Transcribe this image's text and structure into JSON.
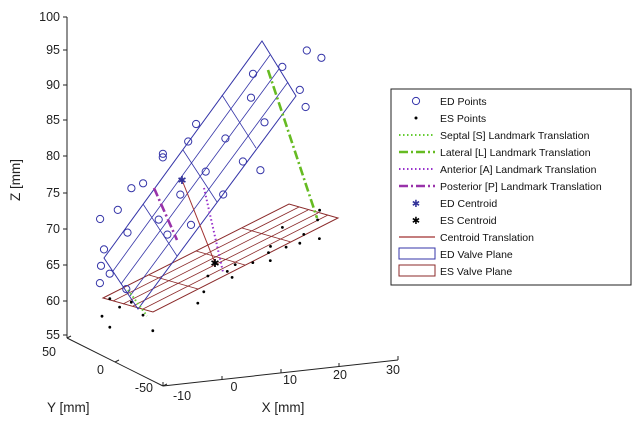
{
  "chart_data": {
    "type": "scatter",
    "projection": "3d",
    "title": "",
    "xlabel": "X [mm]",
    "ylabel": "Y [mm]",
    "zlabel": "Z [mm]",
    "xlim": [
      -10,
      30
    ],
    "ylim": [
      -50,
      50
    ],
    "zlim": [
      55,
      100
    ],
    "x_ticks": [
      "-10",
      "0",
      "10",
      "20",
      "30"
    ],
    "y_ticks": [
      "50",
      "0",
      "-50"
    ],
    "z_ticks": [
      "100",
      "95",
      "90",
      "85",
      "80",
      "75",
      "70",
      "65",
      "60",
      "55"
    ],
    "grid": false,
    "legend_position": "right",
    "legend": [
      {
        "label": "ED Points",
        "marker": "circle",
        "color": "#3333aa"
      },
      {
        "label": "ES Points",
        "marker": "dot",
        "color": "#000000"
      },
      {
        "label": "Septal [S] Landmark Translation",
        "line": "dotted",
        "color": "#66cc33"
      },
      {
        "label": "Lateral [L] Landmark Translation",
        "line": "dashdot",
        "color": "#66bb22"
      },
      {
        "label": "Anterior [A] Landmark Translation",
        "line": "dotted",
        "color": "#9933cc"
      },
      {
        "label": "Posterior [P] Landmark Translation",
        "line": "dashdot",
        "color": "#9933aa"
      },
      {
        "label": "ED Centroid",
        "marker": "star",
        "color": "#333399"
      },
      {
        "label": "ES Centroid",
        "marker": "star",
        "color": "#000000"
      },
      {
        "label": "Centroid Translation",
        "line": "solid",
        "color": "#a03030"
      },
      {
        "label": "ED Valve Plane",
        "patch": true,
        "color": "#3333aa"
      },
      {
        "label": "ES Valve Plane",
        "patch": true,
        "color": "#8b2a2a"
      }
    ],
    "ed_points": [
      [
        -6,
        40,
        72
      ],
      [
        -7,
        33,
        66
      ],
      [
        -8,
        28,
        64
      ],
      [
        -6,
        30,
        65
      ],
      [
        -4,
        25,
        63
      ],
      [
        -1,
        38,
        76
      ],
      [
        0,
        32,
        77
      ],
      [
        2,
        28,
        72
      ],
      [
        -3,
        40,
        73
      ],
      [
        3,
        25,
        70
      ],
      [
        4,
        36,
        80
      ],
      [
        6,
        30,
        75
      ],
      [
        7,
        25,
        71
      ],
      [
        8,
        34,
        82
      ],
      [
        10,
        28,
        78
      ],
      [
        10,
        38,
        84
      ],
      [
        14,
        32,
        82
      ],
      [
        16,
        26,
        79
      ],
      [
        19,
        36,
        87
      ],
      [
        20,
        28,
        84
      ],
      [
        24,
        34,
        91
      ],
      [
        26,
        28,
        88
      ],
      [
        28,
        33,
        93
      ],
      [
        30,
        30,
        92
      ],
      [
        12,
        22,
        75
      ],
      [
        18,
        20,
        78
      ],
      [
        -2,
        36,
        70
      ],
      [
        20,
        40,
        90
      ],
      [
        26,
        22,
        86
      ],
      [
        5,
        42,
        80
      ],
      [
        -6,
        36,
        68
      ]
    ],
    "es_points": [
      [
        -5,
        36,
        61
      ],
      [
        -4,
        32,
        60
      ],
      [
        -2,
        32,
        60.5
      ],
      [
        -1,
        26,
        59
      ],
      [
        -6,
        38,
        58.5
      ],
      [
        -5,
        36,
        57
      ],
      [
        1,
        28,
        56.5
      ],
      [
        8,
        24,
        60
      ],
      [
        10,
        30,
        61
      ],
      [
        12,
        38,
        62.5
      ],
      [
        14,
        25,
        63
      ],
      [
        16,
        34,
        64
      ],
      [
        18,
        28,
        64.5
      ],
      [
        20,
        22,
        65
      ],
      [
        22,
        34,
        66
      ],
      [
        25,
        40,
        68
      ],
      [
        27,
        30,
        67.5
      ],
      [
        29,
        26,
        67
      ],
      [
        30,
        34,
        69
      ],
      [
        31,
        38,
        70
      ],
      [
        26,
        28,
        66.5
      ],
      [
        24,
        30,
        66
      ],
      [
        21,
        30,
        65.5
      ],
      [
        14,
        30,
        63.5
      ]
    ],
    "ed_centroid": [
      12,
      32,
      78
    ],
    "es_centroid": [
      12,
      28,
      62
    ],
    "ed_plane_corners": [
      [
        -8,
        40,
        74
      ],
      [
        32,
        40,
        100
      ],
      [
        32,
        20,
        82
      ],
      [
        -8,
        20,
        56
      ]
    ],
    "es_plane_corners": [
      [
        -8,
        40,
        62
      ],
      [
        32,
        40,
        76
      ],
      [
        32,
        20,
        62
      ],
      [
        -8,
        20,
        48
      ]
    ],
    "septal_translation": [
      [
        -6,
        36,
        61
      ],
      [
        -5,
        36,
        57
      ]
    ],
    "lateral_translation": [
      [
        30,
        34,
        92
      ],
      [
        30,
        34,
        70
      ]
    ],
    "anterior_translation": [
      [
        10,
        30,
        79
      ],
      [
        14,
        30,
        63
      ]
    ],
    "posterior_translation": [
      [
        3,
        36,
        76
      ],
      [
        6,
        36,
        70
      ]
    ],
    "centroid_translation": [
      [
        12,
        32,
        78
      ],
      [
        12,
        28,
        62
      ]
    ]
  }
}
